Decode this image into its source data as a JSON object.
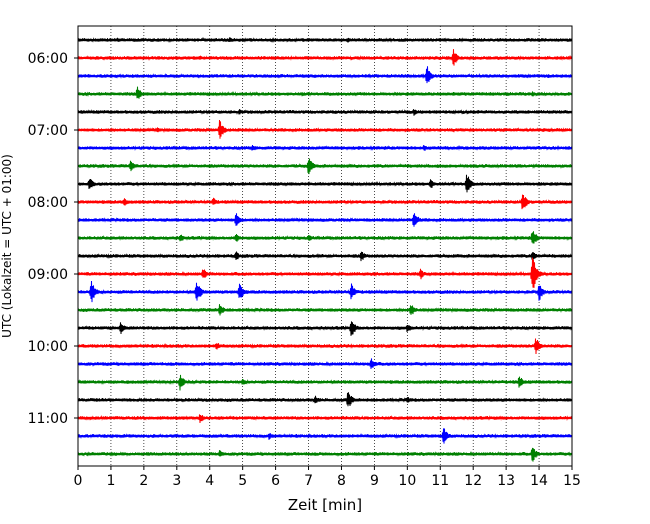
{
  "chart_data": {
    "type": "line",
    "title": "",
    "xlabel": "Zeit  [min]",
    "ylabel": "UTC (Lokalzeit = UTC + 01:00)",
    "xlim": [
      0,
      15
    ],
    "x_ticks": [
      "0",
      "1",
      "2",
      "3",
      "4",
      "5",
      "6",
      "7",
      "8",
      "9",
      "10",
      "11",
      "12",
      "13",
      "14",
      "15"
    ],
    "y_ticks": [
      "06:00",
      "07:00",
      "08:00",
      "09:00",
      "10:00",
      "11:00"
    ],
    "grid": "vertical dotted lines at each minute",
    "trace_colors": [
      "#000000",
      "#ff0000",
      "#0000ff",
      "#008000"
    ],
    "traces": [
      {
        "start": "05:45",
        "events": [
          {
            "t": 1.2,
            "amp": 3
          },
          {
            "t": 4.6,
            "amp": 3
          },
          {
            "t": 8.2,
            "amp": 3
          }
        ]
      },
      {
        "start": "06:00",
        "events": [
          {
            "t": 3.7,
            "amp": 3
          },
          {
            "t": 11.4,
            "amp": 9
          }
        ]
      },
      {
        "start": "06:15",
        "events": [
          {
            "t": 10.6,
            "amp": 11
          }
        ]
      },
      {
        "start": "06:30",
        "events": [
          {
            "t": 1.8,
            "amp": 8
          },
          {
            "t": 6.8,
            "amp": 3
          },
          {
            "t": 13.8,
            "amp": 3
          }
        ]
      },
      {
        "start": "06:45",
        "events": [
          {
            "t": 4.9,
            "amp": 3
          },
          {
            "t": 10.2,
            "amp": 4
          }
        ]
      },
      {
        "start": "07:00",
        "events": [
          {
            "t": 2.4,
            "amp": 3
          },
          {
            "t": 4.3,
            "amp": 11
          }
        ]
      },
      {
        "start": "07:15",
        "events": [
          {
            "t": 5.3,
            "amp": 4
          },
          {
            "t": 10.5,
            "amp": 4
          }
        ]
      },
      {
        "start": "07:30",
        "events": [
          {
            "t": 1.6,
            "amp": 7
          },
          {
            "t": 7.0,
            "amp": 10
          }
        ]
      },
      {
        "start": "07:45",
        "events": [
          {
            "t": 0.35,
            "amp": 7
          },
          {
            "t": 10.7,
            "amp": 6
          },
          {
            "t": 11.8,
            "amp": 12
          }
        ]
      },
      {
        "start": "08:00",
        "events": [
          {
            "t": 1.4,
            "amp": 5
          },
          {
            "t": 4.1,
            "amp": 5
          },
          {
            "t": 13.5,
            "amp": 11
          }
        ]
      },
      {
        "start": "08:15",
        "events": [
          {
            "t": 4.8,
            "amp": 8
          },
          {
            "t": 10.2,
            "amp": 10
          }
        ]
      },
      {
        "start": "08:30",
        "events": [
          {
            "t": 3.1,
            "amp": 5
          },
          {
            "t": 4.8,
            "amp": 5
          },
          {
            "t": 7.0,
            "amp": 4
          },
          {
            "t": 13.8,
            "amp": 10
          }
        ]
      },
      {
        "start": "08:45",
        "events": [
          {
            "t": 4.8,
            "amp": 5
          },
          {
            "t": 8.6,
            "amp": 6
          },
          {
            "t": 13.8,
            "amp": 6
          }
        ]
      },
      {
        "start": "09:00",
        "events": [
          {
            "t": 3.8,
            "amp": 7
          },
          {
            "t": 10.4,
            "amp": 6
          },
          {
            "t": 13.8,
            "amp": 22
          }
        ]
      },
      {
        "start": "09:15",
        "events": [
          {
            "t": 0.4,
            "amp": 13
          },
          {
            "t": 3.6,
            "amp": 13
          },
          {
            "t": 4.9,
            "amp": 10
          },
          {
            "t": 8.3,
            "amp": 9
          },
          {
            "t": 14.0,
            "amp": 10
          }
        ]
      },
      {
        "start": "09:30",
        "events": [
          {
            "t": 4.3,
            "amp": 7
          },
          {
            "t": 10.1,
            "amp": 8
          }
        ]
      },
      {
        "start": "09:45",
        "events": [
          {
            "t": 1.3,
            "amp": 7
          },
          {
            "t": 8.3,
            "amp": 10
          },
          {
            "t": 10.0,
            "amp": 5
          }
        ]
      },
      {
        "start": "10:00",
        "events": [
          {
            "t": 4.2,
            "amp": 5
          },
          {
            "t": 13.9,
            "amp": 10
          }
        ]
      },
      {
        "start": "10:15",
        "events": [
          {
            "t": 8.9,
            "amp": 7
          }
        ]
      },
      {
        "start": "10:30",
        "events": [
          {
            "t": 3.1,
            "amp": 9
          },
          {
            "t": 5.0,
            "amp": 4
          },
          {
            "t": 13.4,
            "amp": 7
          }
        ]
      },
      {
        "start": "10:45",
        "events": [
          {
            "t": 7.2,
            "amp": 5
          },
          {
            "t": 8.2,
            "amp": 10
          },
          {
            "t": 10.0,
            "amp": 4
          }
        ]
      },
      {
        "start": "11:00",
        "events": [
          {
            "t": 3.7,
            "amp": 6
          }
        ]
      },
      {
        "start": "11:15",
        "events": [
          {
            "t": 5.8,
            "amp": 4
          },
          {
            "t": 11.1,
            "amp": 10
          }
        ]
      },
      {
        "start": "11:30",
        "events": [
          {
            "t": 4.3,
            "amp": 5
          },
          {
            "t": 13.8,
            "amp": 9
          }
        ]
      }
    ]
  }
}
